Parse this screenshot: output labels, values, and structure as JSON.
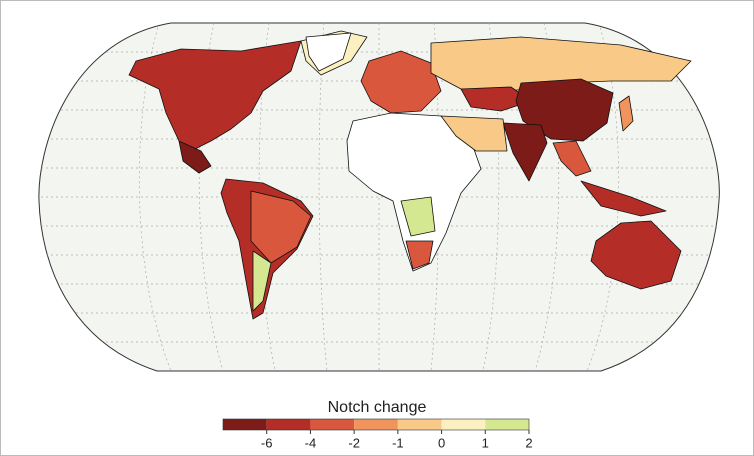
{
  "legend": {
    "title": "Notch change",
    "ticks": [
      -6,
      -4,
      -2,
      -1,
      0,
      1,
      2
    ],
    "colors": [
      "#7c1b18",
      "#b42e27",
      "#d9573c",
      "#f0935c",
      "#f8c987",
      "#fcefc0",
      "#d3e891"
    ]
  }
}
